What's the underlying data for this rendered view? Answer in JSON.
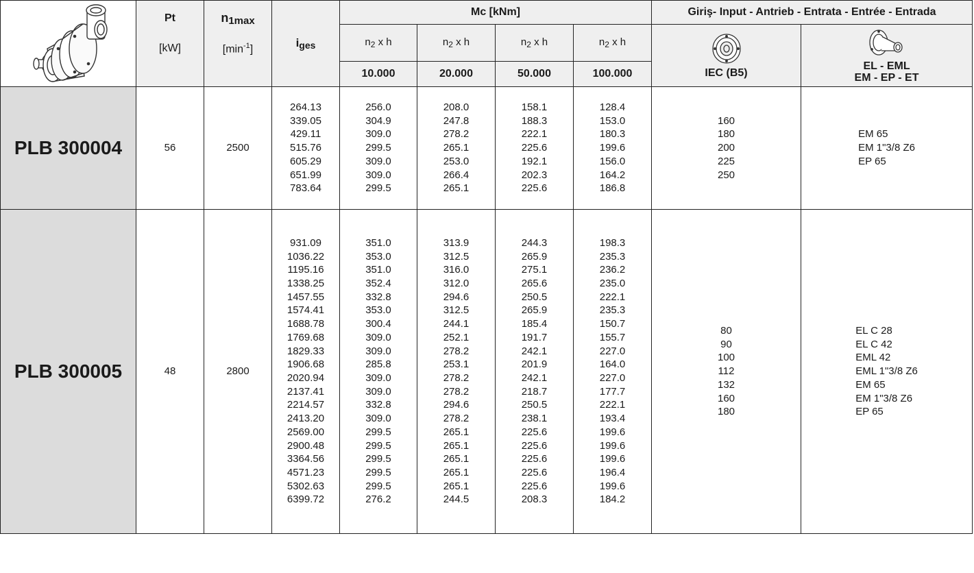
{
  "header": {
    "pt_label": "Pt",
    "pt_unit": "[kW]",
    "n1_label": "n",
    "n1_sub": "1max",
    "n1_unit_base": "[min",
    "n1_unit_sup": "-1",
    "n1_unit_end": "]",
    "iges_label": "i",
    "iges_sub": "ges",
    "mc_title": "Mc [kNm]",
    "n2h_base": "n",
    "n2h_sub": "2",
    "n2h_end": " x h",
    "hours": [
      "10.000",
      "20.000",
      "50.000",
      "100.000"
    ],
    "input_title": "Giriş- Input - Antrieb - Entrata - Entrée - Entrada",
    "iec_label": "IEC (B5)",
    "el_label_1": "EL - EML",
    "el_label_2": "EM - EP - ET"
  },
  "rows": [
    {
      "model": "PLB 300004",
      "pt": "56",
      "n1max": "2500",
      "iges": [
        "264.13",
        "339.05",
        "429.11",
        "515.76",
        "605.29",
        "651.99",
        "783.64"
      ],
      "mc10000": [
        "256.0",
        "304.9",
        "309.0",
        "299.5",
        "309.0",
        "309.0",
        "299.5"
      ],
      "mc20000": [
        "208.0",
        "247.8",
        "278.2",
        "265.1",
        "253.0",
        "266.4",
        "265.1"
      ],
      "mc50000": [
        "158.1",
        "188.3",
        "222.1",
        "225.6",
        "192.1",
        "202.3",
        "225.6"
      ],
      "mc100000": [
        "128.4",
        "153.0",
        "180.3",
        "199.6",
        "156.0",
        "164.2",
        "186.8"
      ],
      "iec": [
        "160",
        "180",
        "200",
        "225",
        "250"
      ],
      "el": [
        "EM 65",
        "EM 1\"3/8 Z6",
        "EP 65"
      ]
    },
    {
      "model": "PLB 300005",
      "pt": "48",
      "n1max": "2800",
      "iges": [
        "931.09",
        "1036.22",
        "1195.16",
        "1338.25",
        "1457.55",
        "1574.41",
        "1688.78",
        "1769.68",
        "1829.33",
        "1906.68",
        "2020.94",
        "2137.41",
        "2214.57",
        "2413.20",
        "2569.00",
        "2900.48",
        "3364.56",
        "4571.23",
        "5302.63",
        "6399.72"
      ],
      "mc10000": [
        "351.0",
        "353.0",
        "351.0",
        "352.4",
        "332.8",
        "353.0",
        "300.4",
        "309.0",
        "309.0",
        "285.8",
        "309.0",
        "309.0",
        "332.8",
        "309.0",
        "299.5",
        "299.5",
        "299.5",
        "299.5",
        "299.5",
        "276.2"
      ],
      "mc20000": [
        "313.9",
        "312.5",
        "316.0",
        "312.0",
        "294.6",
        "312.5",
        "244.1",
        "252.1",
        "278.2",
        "253.1",
        "278.2",
        "278.2",
        "294.6",
        "278.2",
        "265.1",
        "265.1",
        "265.1",
        "265.1",
        "265.1",
        "244.5"
      ],
      "mc50000": [
        "244.3",
        "265.9",
        "275.1",
        "265.6",
        "250.5",
        "265.9",
        "185.4",
        "191.7",
        "242.1",
        "201.9",
        "242.1",
        "218.7",
        "250.5",
        "238.1",
        "225.6",
        "225.6",
        "225.6",
        "225.6",
        "225.6",
        "208.3"
      ],
      "mc100000": [
        "198.3",
        "235.3",
        "236.2",
        "235.0",
        "222.1",
        "235.3",
        "150.7",
        "155.7",
        "227.0",
        "164.0",
        "227.0",
        "177.7",
        "222.1",
        "193.4",
        "199.6",
        "199.6",
        "199.6",
        "196.4",
        "199.6",
        "184.2"
      ],
      "iec": [
        "80",
        "90",
        "100",
        "112",
        "132",
        "160",
        "180"
      ],
      "el": [
        "EL C 28",
        "EL C 42",
        "EML 42",
        "EML 1\"3/8 Z6",
        "EM 65",
        "EM 1\"3/8 Z6",
        "EP 65"
      ]
    }
  ]
}
